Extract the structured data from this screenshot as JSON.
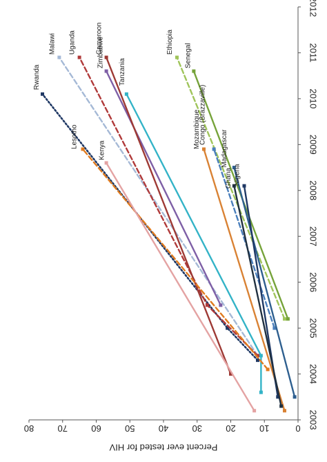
{
  "chart_data": {
    "type": "line",
    "orientation": "rotated-90-clockwise",
    "title": "",
    "xlabel": "",
    "ylabel": "Percent ever tested for HIV",
    "xlim": [
      2003,
      2012
    ],
    "ylim": [
      0,
      80
    ],
    "x_ticks": [
      "2003",
      "2004",
      "2005",
      "2006",
      "2007",
      "2008",
      "2009",
      "2010",
      "2011",
      "2012"
    ],
    "y_ticks": [
      "0",
      "10",
      "20",
      "30",
      "40",
      "50",
      "60",
      "70",
      "80"
    ],
    "grid": false,
    "legend": "none (series labeled at line ends)",
    "series": [
      {
        "name": "Rwanda",
        "color": "#1f3864",
        "style": "dotted",
        "points": [
          [
            2004.3,
            12
          ],
          [
            2005.0,
            21
          ],
          [
            2010.1,
            76
          ]
        ]
      },
      {
        "name": "Malawi",
        "color": "#a5b9d6",
        "style": "dashed",
        "points": [
          [
            2004.4,
            12
          ],
          [
            2010.9,
            71
          ]
        ]
      },
      {
        "name": "Uganda",
        "color": "#b03a3a",
        "style": "dashed",
        "points": [
          [
            2004.4,
            12
          ],
          [
            2005.5,
            27
          ],
          [
            2010.9,
            65
          ]
        ]
      },
      {
        "name": "Zimbabwe",
        "color": "#7e5fa6",
        "style": "solid",
        "points": [
          [
            2005.5,
            23
          ],
          [
            2010.6,
            57
          ]
        ]
      },
      {
        "name": "Cameroon",
        "color": "#9e3a35",
        "style": "solid",
        "points": [
          [
            2004.0,
            20
          ],
          [
            2010.9,
            57
          ]
        ]
      },
      {
        "name": "Tanzania",
        "color": "#33b3c7",
        "style": "solid",
        "points": [
          [
            2003.6,
            11
          ],
          [
            2004.4,
            11
          ],
          [
            2010.1,
            51
          ]
        ]
      },
      {
        "name": "Lesotho",
        "color": "#e07b1f",
        "style": "dashed",
        "points": [
          [
            2004.1,
            9
          ],
          [
            2008.9,
            64
          ]
        ]
      },
      {
        "name": "Kenya",
        "color": "#e4a3a3",
        "style": "solid",
        "points": [
          [
            2003.2,
            13
          ],
          [
            2008.6,
            57
          ]
        ]
      },
      {
        "name": "Ethiopia",
        "color": "#9fc45a",
        "style": "dashed",
        "points": [
          [
            2005.2,
            4
          ],
          [
            2010.9,
            36
          ]
        ]
      },
      {
        "name": "Senegal",
        "color": "#76a33a",
        "style": "solid",
        "points": [
          [
            2005.2,
            3
          ],
          [
            2010.6,
            31
          ]
        ]
      },
      {
        "name": "Mozambique",
        "color": "#d98234",
        "style": "solid",
        "points": [
          [
            2003.2,
            4
          ],
          [
            2008.9,
            28
          ]
        ]
      },
      {
        "name": "Congo (Brazzaville)",
        "color": "#4a7fbc",
        "style": "dashed",
        "points": [
          [
            2005.0,
            7
          ],
          [
            2008.9,
            25
          ]
        ]
      },
      {
        "name": "Madagascar",
        "color": "#2e5f8f",
        "style": "solid",
        "points": [
          [
            2003.5,
            1
          ],
          [
            2008.5,
            19
          ]
        ]
      },
      {
        "name": "Nigeria",
        "color": "#1f3864",
        "style": "solid",
        "points": [
          [
            2003.5,
            6
          ],
          [
            2008.1,
            16
          ]
        ]
      },
      {
        "name": "Ghana",
        "color": "#203040",
        "style": "solid",
        "points": [
          [
            2003.3,
            5
          ],
          [
            2008.1,
            19
          ]
        ]
      }
    ]
  }
}
